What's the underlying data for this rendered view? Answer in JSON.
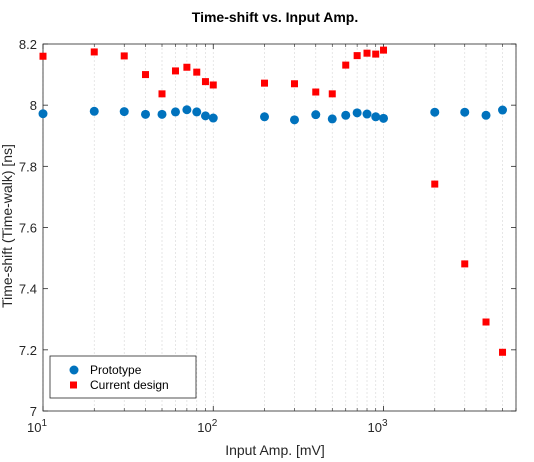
{
  "chart_data": {
    "type": "scatter",
    "title": "Time-shift vs. Input Amp.",
    "xlabel": "Input Amp. [mV]",
    "ylabel": "Time-shift (Time-walk) [ns]",
    "xscale": "log",
    "xlim": [
      10,
      6000
    ],
    "ylim": [
      7,
      8.2
    ],
    "grid": "vertical-minor",
    "legend_position": "bottom-left",
    "xticks": [
      {
        "value": 10,
        "base": "10",
        "exp": "1"
      },
      {
        "value": 100,
        "base": "10",
        "exp": "2"
      },
      {
        "value": 1000,
        "base": "10",
        "exp": "3"
      }
    ],
    "yticks": [
      "7",
      "7.2",
      "7.4",
      "7.6",
      "7.8",
      "8",
      "8.2"
    ],
    "series": [
      {
        "name": "Prototype",
        "marker": "circle",
        "color": "#0072BD",
        "x": [
          10,
          20,
          30,
          40,
          50,
          60,
          70,
          80,
          90,
          100,
          200,
          300,
          400,
          500,
          600,
          700,
          800,
          900,
          1000,
          2000,
          3000,
          4000,
          5000
        ],
        "y": [
          7.972,
          7.98,
          7.979,
          7.97,
          7.97,
          7.978,
          7.985,
          7.978,
          7.965,
          7.958,
          7.962,
          7.952,
          7.969,
          7.955,
          7.967,
          7.975,
          7.971,
          7.962,
          7.957,
          7.977,
          7.977,
          7.967,
          7.984
        ]
      },
      {
        "name": "Current design",
        "marker": "square",
        "color": "#FF0000",
        "x": [
          10,
          20,
          30,
          40,
          50,
          60,
          70,
          80,
          90,
          100,
          200,
          300,
          400,
          500,
          600,
          700,
          800,
          900,
          1000,
          2000,
          3000,
          4000,
          5000
        ],
        "y": [
          8.16,
          8.174,
          8.161,
          8.1,
          8.037,
          8.112,
          8.124,
          8.108,
          8.077,
          8.066,
          8.072,
          8.07,
          8.043,
          8.037,
          8.131,
          8.162,
          8.17,
          8.167,
          8.18,
          7.742,
          7.481,
          7.291,
          7.192
        ]
      }
    ]
  }
}
